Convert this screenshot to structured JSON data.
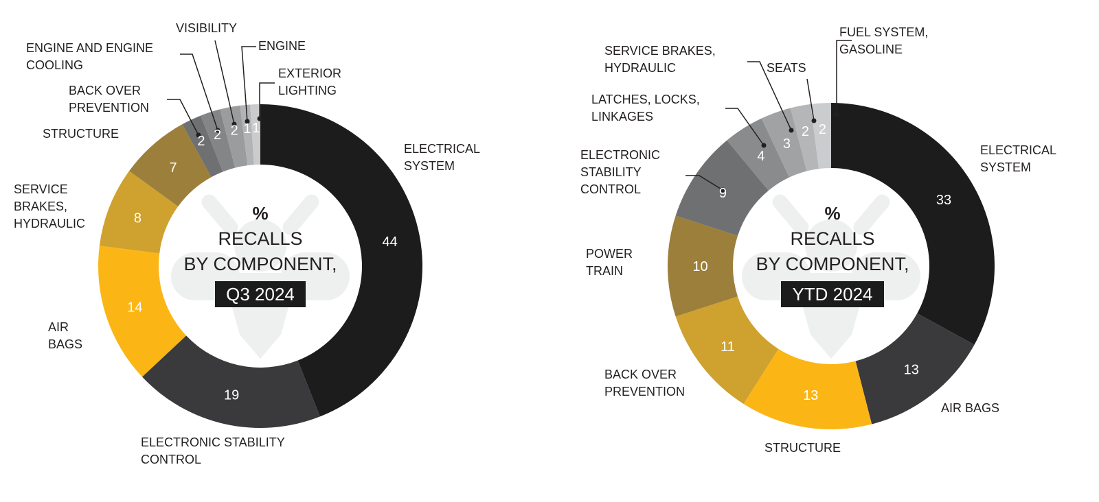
{
  "chart_data": [
    {
      "type": "pie",
      "variant": "donut",
      "title": [
        "%",
        "RECALLS",
        "BY COMPONENT,",
        "Q3 2024"
      ],
      "unit": "%",
      "categories": [
        "ELECTRICAL SYSTEM",
        "ELECTRONIC STABILITY CONTROL",
        "AIR BAGS",
        "SERVICE BRAKES, HYDRAULIC",
        "STRUCTURE",
        "BACK OVER PREVENTION",
        "ENGINE AND ENGINE COOLING",
        "VISIBILITY",
        "ENGINE",
        "EXTERIOR LIGHTING"
      ],
      "values": [
        44,
        19,
        14,
        8,
        7,
        2,
        2,
        2,
        1,
        1
      ],
      "colors": [
        "#1d1c1d",
        "#3a3a3c",
        "#fbb616",
        "#cfa12f",
        "#9c7f3a",
        "#6e7072",
        "#838587",
        "#9b9c9e",
        "#b1b3b5",
        "#c9cbcc"
      ]
    },
    {
      "type": "pie",
      "variant": "donut",
      "title": [
        "%",
        "RECALLS",
        "BY COMPONENT,",
        "YTD 2024"
      ],
      "unit": "%",
      "categories": [
        "ELECTRICAL SYSTEM",
        "AIR BAGS",
        "STRUCTURE",
        "BACK OVER PREVENTION",
        "POWER TRAIN",
        "ELECTRONIC STABILITY CONTROL",
        "LATCHES, LOCKS, LINKAGES",
        "SERVICE BRAKES, HYDRAULIC",
        "SEATS",
        "FUEL SYSTEM, GASOLINE"
      ],
      "values": [
        33,
        13,
        13,
        11,
        10,
        9,
        4,
        3,
        2,
        2
      ],
      "colors": [
        "#1d1c1d",
        "#3a3a3c",
        "#fbb616",
        "#cfa12f",
        "#9c7f3a",
        "#6e7072",
        "#8a8b8d",
        "#a0a2a4",
        "#b5b6b8",
        "#caccce"
      ]
    }
  ]
}
